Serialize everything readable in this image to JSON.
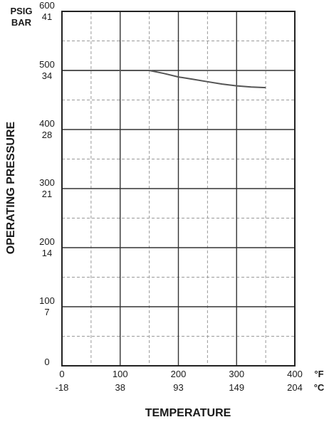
{
  "chart_data": {
    "type": "line",
    "title": "",
    "xlabel": "TEMPERATURE",
    "ylabel": "OPERATING PRESSURE",
    "x_primary_unit": "°F",
    "x_secondary_unit": "°C",
    "y_primary_unit": "PSIG",
    "y_secondary_unit": "BAR",
    "xlim": [
      0,
      400
    ],
    "ylim": [
      0,
      600
    ],
    "x_ticks": [
      0,
      100,
      200,
      300,
      400
    ],
    "x_tick_labels_f": [
      "0",
      "100",
      "200",
      "300",
      "400"
    ],
    "x_tick_labels_c": [
      "-18",
      "38",
      "93",
      "149",
      "204"
    ],
    "y_ticks": [
      0,
      100,
      200,
      300,
      400,
      500,
      600
    ],
    "y_tick_labels_psig": [
      "0",
      "100",
      "200",
      "300",
      "400",
      "500",
      "600"
    ],
    "y_tick_labels_bar": [
      "",
      "7",
      "14",
      "21",
      "28",
      "34",
      "41"
    ],
    "grid": true,
    "minor_grid_dashed": true,
    "legend": "none",
    "series": [
      {
        "x": [
          0,
          150,
          175,
          200,
          225,
          250,
          275,
          300,
          325,
          350
        ],
        "y": [
          500,
          500,
          495,
          489,
          485,
          481,
          477,
          474,
          472,
          471
        ]
      }
    ],
    "colors": {
      "line": "#555555",
      "grid": "#333333",
      "minor_grid": "#999999",
      "frame": "#222222"
    }
  }
}
